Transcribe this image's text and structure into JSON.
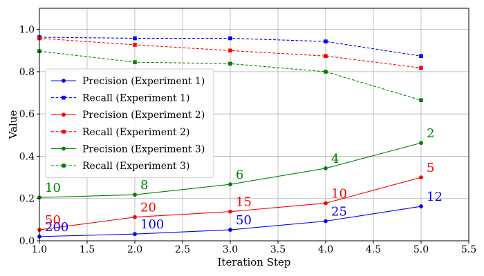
{
  "chart_data": {
    "type": "line",
    "title": "",
    "xlabel": "Iteration Step",
    "ylabel": "Value",
    "xlim": [
      1.0,
      5.5
    ],
    "ylim": [
      0.0,
      1.1
    ],
    "grid": true,
    "legend_position": "middle-left",
    "x_ticks": [
      "1.0",
      "1.5",
      "2.0",
      "2.5",
      "3.0",
      "3.5",
      "4.0",
      "4.5",
      "5.0",
      "5.5"
    ],
    "y_ticks": [
      "0.0",
      "0.2",
      "0.4",
      "0.6",
      "0.8",
      "1.0"
    ],
    "x": [
      1,
      2,
      3,
      4,
      5
    ],
    "series": [
      {
        "name": "Precision (Experiment 1)",
        "color": "#0000ff",
        "style": "solid",
        "marker": "circle",
        "values": [
          0.02,
          0.032,
          0.052,
          0.093,
          0.163
        ]
      },
      {
        "name": "Recall (Experiment 1)",
        "color": "#0000ff",
        "style": "dashed",
        "marker": "square",
        "values": [
          0.963,
          0.958,
          0.958,
          0.943,
          0.874
        ]
      },
      {
        "name": "Precision (Experiment 2)",
        "color": "#ff0000",
        "style": "solid",
        "marker": "circle",
        "values": [
          0.052,
          0.112,
          0.138,
          0.178,
          0.3
        ]
      },
      {
        "name": "Recall (Experiment 2)",
        "color": "#ff0000",
        "style": "dashed",
        "marker": "square",
        "values": [
          0.958,
          0.927,
          0.9,
          0.874,
          0.818
        ]
      },
      {
        "name": "Precision (Experiment 3)",
        "color": "#008000",
        "style": "solid",
        "marker": "circle",
        "values": [
          0.205,
          0.218,
          0.267,
          0.343,
          0.463
        ]
      },
      {
        "name": "Recall (Experiment 3)",
        "color": "#008000",
        "style": "dashed",
        "marker": "square",
        "values": [
          0.897,
          0.845,
          0.838,
          0.8,
          0.665
        ]
      }
    ],
    "annotations": [
      {
        "series": 0,
        "labels": [
          "200",
          "100",
          "50",
          "25",
          "12"
        ]
      },
      {
        "series": 2,
        "labels": [
          "50",
          "20",
          "15",
          "10",
          "5"
        ]
      },
      {
        "series": 4,
        "labels": [
          "10",
          "8",
          "6",
          "4",
          "2"
        ]
      }
    ]
  }
}
